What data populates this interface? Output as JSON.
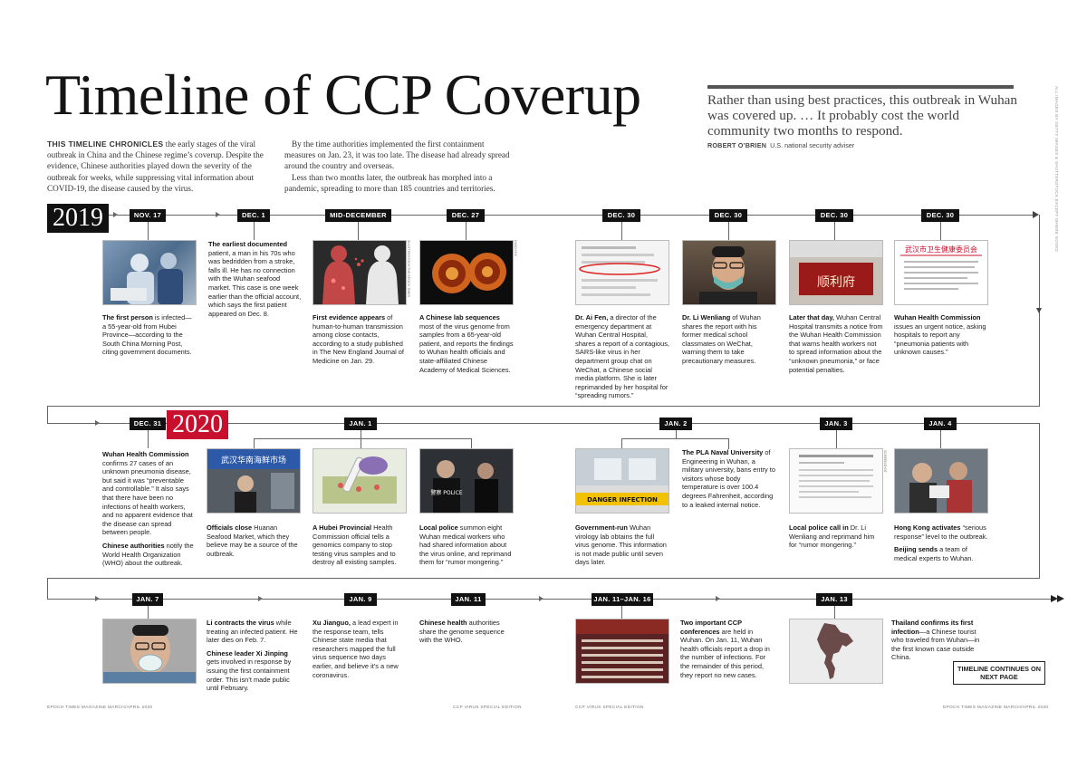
{
  "title": "Timeline of CCP Coverup",
  "intro": {
    "lead_caps": "THIS TIMELINE CHRONICLES",
    "col1_rest": " the early stages of the viral outbreak in China and the Chinese regime’s coverup. Despite the evidence, Chinese authorities played down the severity of the outbreak for weeks, while suppressing vital information about COVID-19, the disease caused by the virus.",
    "col2_p1": "By the time authorities implemented the first containment measures on Jan. 23, it was too late. The disease had already spread around the country and overseas.",
    "col2_p2": "Less than two months later, the outbreak has morphed into a pandemic, spreading to more than 185 countries and territories."
  },
  "quote": {
    "text": "Rather than using best practices, this outbreak in Wuhan was covered up. … It probably cost the world community two months to respond.",
    "source_name": "ROBERT O’BRIEN",
    "source_role": "U.S. national security adviser"
  },
  "side_credit": "ALL IMAGES BY GETTY IMAGES & SHUTTERSTOCK EXCEPT WHERE NOTED",
  "years": {
    "y2019": "2019",
    "y2020": "2020"
  },
  "colors": {
    "black": "#111111",
    "red": "#c8102e",
    "line": "#666666"
  },
  "row1": {
    "dates": [
      "NOV. 17",
      "DEC. 1",
      "MID-DECEMBER",
      "DEC. 27",
      "DEC. 30",
      "DEC. 30",
      "DEC. 30",
      "DEC. 30"
    ],
    "nov17": {
      "bold": "The first person",
      "rest": " is infected—a 55-year-old from Hubei Province—according to the South China Morning Post, citing government documents."
    },
    "dec1": {
      "bold": "The earliest documented",
      "rest": " patient, a man in his 70s who was bedridden from a stroke, falls ill. He has no connection with the Wuhan seafood market. This case is one week earlier than the official account, which says the first patient appeared on Dec. 8."
    },
    "midDec": {
      "bold": "First evidence appears",
      "rest": " of human-to-human transmission among close contacts, according to a study published in The New England Journal of Medicine on Jan. 29.",
      "credit": "SHUTTERSTOCK/THE EPOCH TIMES"
    },
    "dec27": {
      "bold": "A Chinese lab sequences",
      "rest": " most of the virus genome from samples from a 65-year-old patient, and reports the findings to Wuhan health officials and state-affiliated Chinese Academy of Medical Sciences.",
      "credit": "NIAID/CDC"
    },
    "dec30a": {
      "bold": "Dr. Ai Fen,",
      "rest": " a director of the emergency department at Wuhan Central Hospital, shares a report of a contagious, SARS-like virus in her department group chat on WeChat, a Chinese social media platform. She is later reprimanded by her hospital for “spreading rumors.”"
    },
    "dec30b": {
      "bold": "Dr. Li Wenliang",
      "rest": " of Wuhan shares the report with his former medical school classmates on WeChat, warning them to take precautionary measures."
    },
    "dec30c": {
      "bold": "Later that day,",
      "rest": " Wuhan Central Hospital transmits a notice from the Wuhan Health Commission that warns health workers not to spread information about the “unknown pneumonia,” or face potential penalties."
    },
    "dec30d": {
      "bold": "Wuhan Health Commission",
      "rest": " issues an urgent notice, asking hospitals to report any “pneumonia patients with unknown causes.”"
    }
  },
  "row2": {
    "dates": [
      "DEC. 31",
      "JAN. 1",
      "JAN. 2",
      "JAN. 3",
      "JAN. 4"
    ],
    "dec31": {
      "bold": "Wuhan Health Commission",
      "rest": " confirms 27 cases of an unknown pneumonia disease, but said it was “preventable and controllable.” It also says that there have been no infections of health workers, and no apparent evidence that the disease can spread between people.",
      "bold2": "Chinese authorities",
      "rest2": " notify the World Health Organization (WHO) about the outbreak."
    },
    "jan1a": {
      "bold": "Officials close",
      "rest": " Huanan Seafood Market, which they believe may be a source of the outbreak."
    },
    "jan1b": {
      "bold": "A Hubei Provincial",
      "rest": " Health Commission official tells a genomics company to stop testing virus samples and to destroy all existing samples."
    },
    "jan1c": {
      "bold": "Local police",
      "rest": " summon eight Wuhan medical workers who had shared information about the virus online, and reprimand them for “rumor mongering.”"
    },
    "jan2a": {
      "bold": "Government-run",
      "rest": " Wuhan virology lab obtains the full virus genome. This information is not made public until seven days later."
    },
    "jan2b": {
      "bold": "The PLA Naval University",
      "rest": " of Engineering in Wuhan, a military university, bans entry to visitors whose body temperature is over 100.4 degrees Fahrenheit, according to a leaked internal notice."
    },
    "jan3": {
      "bold": "Local police call in",
      "rest": " Dr. Li Wenliang and reprimand him for “rumor mongering.”",
      "credit": "SCREENSHOT"
    },
    "jan4": {
      "bold": "Hong Kong activates",
      "rest": " “serious response” level to the outbreak.",
      "bold2": "Beijing sends",
      "rest2": " a team of medical experts to Wuhan."
    }
  },
  "row3": {
    "dates": [
      "JAN. 7",
      "JAN. 9",
      "JAN. 11",
      "JAN. 11–JAN. 16",
      "JAN. 13"
    ],
    "jan7": {
      "bold": "Li contracts the virus",
      "rest": " while treating an infected patient. He later dies on Feb. 7.",
      "bold2": "Chinese leader Xi Jinping",
      "rest2": " gets involved in response by issuing the first containment order. This isn’t made public until February."
    },
    "jan9": {
      "bold": "Xu Jianguo,",
      "rest": " a lead expert in the response team, tells Chinese state media that researchers mapped the full virus sequence two days earlier, and believe it’s a new coronavirus."
    },
    "jan11": {
      "bold": "Chinese health",
      "rest": " authorities share the genome sequence with the WHO."
    },
    "jan11_16": {
      "bold": "Two important CCP conferences",
      "rest": " are held in Wuhan. On Jan. 11, Wuhan health officials report a drop in the number of infections. For the remainder of this period, they report no new cases."
    },
    "jan13": {
      "bold": "Thailand confirms its first infection",
      "rest": "—a Chinese tourist who traveled from Wuhan—in the first known case outside China."
    }
  },
  "continues": "TIMELINE CONTINUES ON NEXT PAGE",
  "signs": {
    "wuhan_health": "武汉市卫生健康委员会",
    "danger": "DANGER INFECTION",
    "police": "警察 POLICE",
    "shunli": "顺利府",
    "market": "武汉华南海鲜市场"
  },
  "footer": {
    "left": "EPOCH TIMES MAGAZINE MARCH/APRIL 2020",
    "mid1": "CCP VIRUS SPECIAL EDITION",
    "mid2": "CCP VIRUS SPECIAL EDITION",
    "right": "EPOCH TIMES MAGAZINE MARCH/APRIL 2020"
  }
}
